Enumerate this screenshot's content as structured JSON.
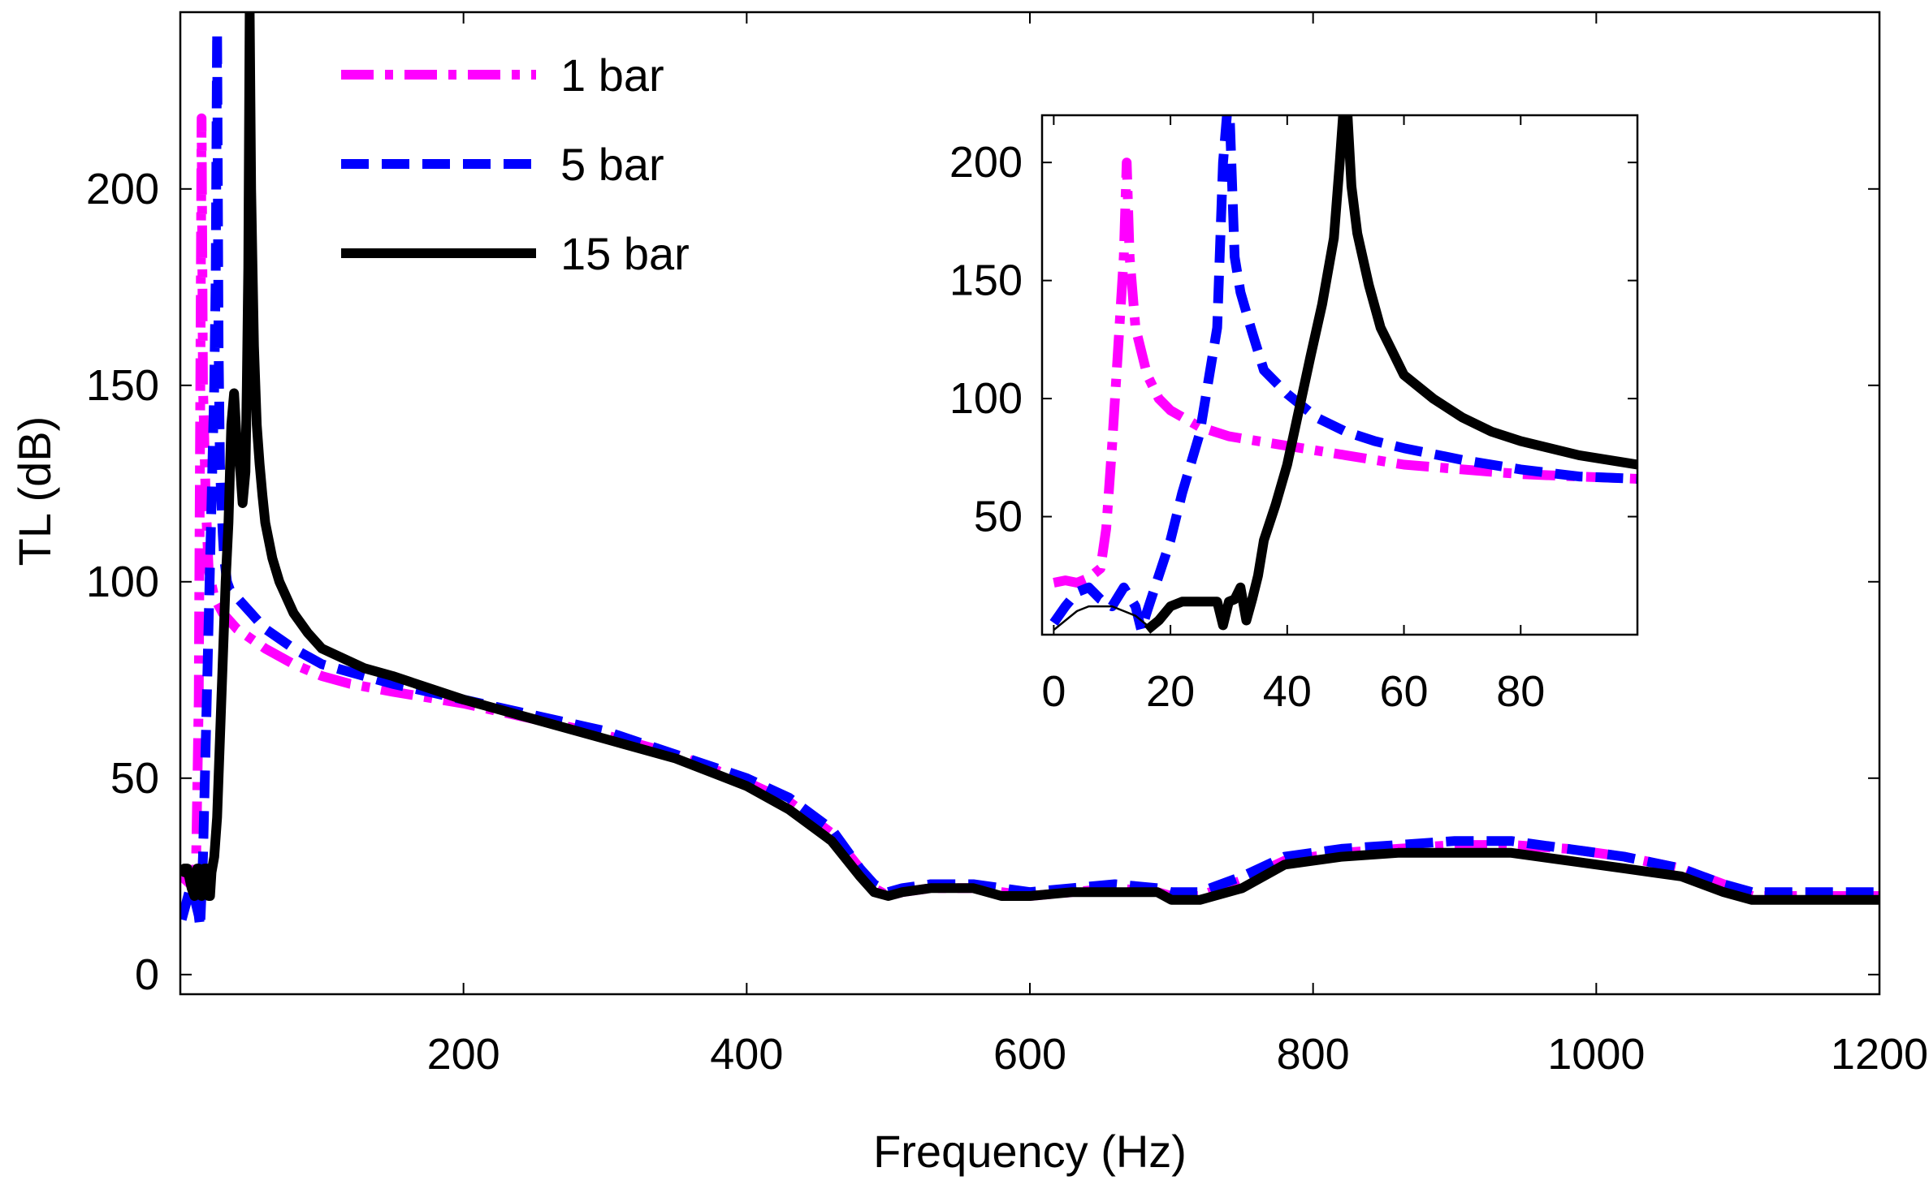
{
  "chart_data": [
    {
      "id": "main",
      "type": "line",
      "title": "",
      "xlabel": "Frequency (Hz)",
      "ylabel": "TL (dB)",
      "xlim": [
        0,
        1200
      ],
      "ylim": [
        -5,
        245
      ],
      "xticks": [
        200,
        400,
        600,
        800,
        1000,
        1200
      ],
      "xtick_labels": [
        "200",
        "400",
        "600",
        "800",
        "1000",
        "1200"
      ],
      "yticks": [
        0,
        50,
        100,
        150,
        200
      ],
      "ytick_labels": [
        "0",
        "50",
        "100",
        "150",
        "200"
      ],
      "grid": false,
      "legend_position": "top-left",
      "series": [
        {
          "name": "1 bar",
          "color": "#ff00ff",
          "style": "dashdot",
          "x": [
            1,
            4,
            7,
            9,
            11,
            13,
            14,
            15,
            16,
            18,
            20,
            24,
            30,
            40,
            60,
            80,
            100,
            120,
            150,
            200,
            250,
            300,
            350,
            400,
            430,
            460,
            480,
            490,
            500,
            510,
            530,
            560,
            580,
            600,
            630,
            660,
            690,
            700,
            720,
            750,
            780,
            820,
            860,
            900,
            940,
            980,
            1020,
            1060,
            1090,
            1110,
            1140,
            1170,
            1200
          ],
          "y": [
            25,
            24,
            23,
            24,
            26,
            70,
            140,
            218,
            150,
            120,
            103,
            96,
            92,
            88,
            83,
            79,
            76,
            74,
            72,
            69,
            65,
            61,
            56,
            49,
            44,
            36,
            27,
            22,
            20,
            21,
            22,
            22,
            21,
            20,
            21,
            22,
            21,
            20,
            20,
            24,
            29,
            31,
            32,
            33,
            33,
            32,
            30,
            27,
            23,
            20,
            20,
            20,
            20
          ]
        },
        {
          "name": "5 bar",
          "color": "#0000ff",
          "style": "dashed",
          "x": [
            1,
            4,
            7,
            9,
            11,
            13,
            14,
            16,
            18,
            20,
            22,
            24,
            25,
            26,
            27,
            28,
            29,
            30,
            31,
            32,
            33,
            35,
            40,
            50,
            60,
            80,
            100,
            130,
            150,
            200,
            250,
            300,
            350,
            400,
            430,
            460,
            480,
            490,
            500,
            510,
            530,
            560,
            580,
            600,
            630,
            660,
            690,
            700,
            720,
            750,
            780,
            820,
            860,
            900,
            940,
            980,
            1020,
            1060,
            1090,
            1110,
            1140,
            1170,
            1200
          ],
          "y": [
            14,
            18,
            22,
            21,
            18,
            15,
            12,
            30,
            60,
            90,
            120,
            150,
            178,
            240,
            160,
            130,
            120,
            112,
            106,
            103,
            100,
            98,
            96,
            92,
            88,
            83,
            79,
            76,
            74,
            70,
            66,
            62,
            56,
            50,
            45,
            37,
            27,
            23,
            21,
            22,
            23,
            23,
            22,
            21,
            22,
            23,
            22,
            21,
            21,
            25,
            30,
            32,
            33,
            34,
            34,
            32,
            30,
            27,
            23,
            21,
            21,
            21,
            21
          ]
        },
        {
          "name": "15 bar",
          "color": "#000000",
          "style": "solid",
          "x": [
            1,
            3,
            5,
            8,
            10,
            12,
            13,
            15,
            17,
            19,
            20,
            21,
            22,
            24,
            26,
            28,
            30,
            32,
            34,
            36,
            38,
            40,
            42,
            44,
            46,
            47,
            48,
            49,
            50,
            51,
            52,
            53,
            54,
            56,
            58,
            60,
            65,
            70,
            80,
            90,
            100,
            130,
            150,
            200,
            250,
            300,
            350,
            400,
            430,
            460,
            480,
            490,
            500,
            510,
            530,
            560,
            580,
            600,
            630,
            660,
            690,
            700,
            720,
            750,
            780,
            820,
            860,
            900,
            940,
            980,
            1020,
            1060,
            1090,
            1110,
            1140,
            1170,
            1200
          ],
          "y": [
            25,
            27,
            27,
            22,
            20,
            27,
            27,
            20,
            27,
            27,
            20,
            20,
            26,
            30,
            40,
            60,
            80,
            100,
            115,
            140,
            148,
            135,
            130,
            120,
            128,
            150,
            180,
            245,
            200,
            180,
            160,
            150,
            140,
            130,
            122,
            115,
            106,
            100,
            92,
            87,
            83,
            78,
            76,
            70,
            65,
            60,
            55,
            48,
            42,
            34,
            25,
            21,
            20,
            21,
            22,
            22,
            20,
            20,
            21,
            21,
            21,
            19,
            19,
            22,
            28,
            30,
            31,
            31,
            31,
            29,
            27,
            25,
            21,
            19,
            19,
            19,
            19
          ]
        }
      ]
    },
    {
      "id": "inset",
      "type": "line",
      "title": "",
      "xlabel": "",
      "ylabel": "",
      "xlim": [
        -2,
        100
      ],
      "ylim": [
        0,
        220
      ],
      "xticks": [
        0,
        20,
        40,
        60,
        80
      ],
      "xtick_labels": [
        "0",
        "20",
        "40",
        "60",
        "80"
      ],
      "yticks": [
        50,
        100,
        150,
        200
      ],
      "ytick_labels": [
        "50",
        "100",
        "150",
        "200"
      ],
      "grid": false,
      "series": [
        {
          "name": "1 bar",
          "color": "#ff00ff",
          "style": "dashdot",
          "x": [
            0,
            2,
            4,
            6,
            8,
            9,
            10,
            11,
            12,
            12.5,
            13,
            14,
            16,
            18,
            20,
            25,
            30,
            40,
            50,
            60,
            70,
            80,
            90,
            100
          ],
          "y": [
            22,
            23,
            22,
            24,
            28,
            45,
            80,
            120,
            160,
            200,
            160,
            130,
            110,
            100,
            95,
            88,
            84,
            80,
            76,
            72,
            70,
            68,
            67,
            66
          ]
        },
        {
          "name": "5 bar",
          "color": "#0000ff",
          "style": "dashed",
          "x": [
            0,
            2,
            4,
            6,
            8,
            10,
            12,
            14,
            15,
            16,
            18,
            20,
            22,
            25,
            28,
            29,
            30,
            31,
            32,
            34,
            36,
            40,
            45,
            50,
            55,
            60,
            70,
            80,
            90,
            100
          ],
          "y": [
            5,
            12,
            18,
            20,
            15,
            12,
            20,
            12,
            2,
            10,
            25,
            40,
            60,
            85,
            130,
            200,
            230,
            160,
            145,
            128,
            112,
            102,
            92,
            86,
            82,
            79,
            74,
            70,
            67,
            66
          ]
        },
        {
          "name": "15 bar",
          "color": "#000000",
          "style": "solid",
          "x": [
            16,
            18,
            20,
            22,
            24,
            26,
            28,
            29,
            30,
            31,
            32,
            33,
            34,
            35,
            36,
            38,
            40,
            42,
            44,
            46,
            48,
            49,
            50,
            51,
            52,
            54,
            56,
            58,
            60,
            65,
            70,
            75,
            80,
            90,
            100
          ],
          "y": [
            2,
            6,
            12,
            14,
            14,
            14,
            14,
            4,
            14,
            15,
            20,
            6,
            15,
            25,
            40,
            55,
            72,
            95,
            118,
            140,
            168,
            200,
            235,
            190,
            170,
            148,
            130,
            120,
            110,
            100,
            92,
            86,
            82,
            76,
            72
          ]
        },
        {
          "name": "",
          "color": "#000000",
          "style": "thin",
          "x": [
            0,
            2,
            4,
            6,
            8,
            10,
            12,
            14,
            16
          ],
          "y": [
            2,
            6,
            10,
            12,
            12,
            12,
            10,
            8,
            4
          ]
        }
      ]
    }
  ]
}
